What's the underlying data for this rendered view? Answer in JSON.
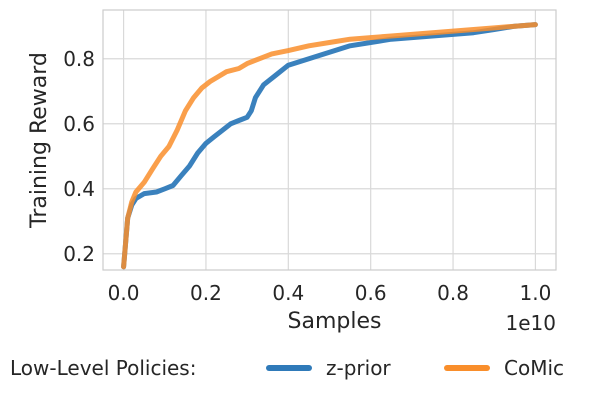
{
  "chart_data": {
    "type": "line",
    "xlabel": "Samples",
    "ylabel": "Training Reward",
    "x_offset_label": "1e10",
    "xlim": [
      -0.05,
      1.05
    ],
    "ylim": [
      0.15,
      0.95
    ],
    "xticks": [
      0.0,
      0.2,
      0.4,
      0.6,
      0.8,
      1.0
    ],
    "xtick_labels": [
      "0.0",
      "0.2",
      "0.4",
      "0.6",
      "0.8",
      "1.0"
    ],
    "yticks": [
      0.2,
      0.4,
      0.6,
      0.8
    ],
    "ytick_labels": [
      "0.2",
      "0.4",
      "0.6",
      "0.8"
    ],
    "grid": true,
    "legend": {
      "title": "Low-Level Policies:",
      "placement": "bottom"
    },
    "series": [
      {
        "name": "z-prior",
        "color": "#2f7ab9",
        "x": [
          0.0,
          0.01,
          0.02,
          0.03,
          0.05,
          0.08,
          0.1,
          0.12,
          0.14,
          0.16,
          0.18,
          0.2,
          0.22,
          0.24,
          0.26,
          0.28,
          0.3,
          0.31,
          0.32,
          0.34,
          0.37,
          0.4,
          0.45,
          0.5,
          0.55,
          0.6,
          0.65,
          0.7,
          0.75,
          0.8,
          0.85,
          0.9,
          0.95,
          1.0
        ],
        "values": [
          0.16,
          0.31,
          0.35,
          0.37,
          0.385,
          0.39,
          0.4,
          0.41,
          0.44,
          0.47,
          0.51,
          0.54,
          0.56,
          0.58,
          0.6,
          0.61,
          0.62,
          0.64,
          0.68,
          0.72,
          0.75,
          0.78,
          0.8,
          0.82,
          0.84,
          0.85,
          0.86,
          0.865,
          0.87,
          0.875,
          0.88,
          0.89,
          0.9,
          0.905
        ]
      },
      {
        "name": "CoMic",
        "color": "#f98e2b",
        "x": [
          0.0,
          0.01,
          0.02,
          0.03,
          0.05,
          0.07,
          0.09,
          0.11,
          0.13,
          0.15,
          0.17,
          0.19,
          0.21,
          0.23,
          0.25,
          0.28,
          0.3,
          0.33,
          0.36,
          0.4,
          0.45,
          0.5,
          0.55,
          0.6,
          0.65,
          0.7,
          0.75,
          0.8,
          0.85,
          0.9,
          0.95,
          1.0
        ],
        "values": [
          0.16,
          0.31,
          0.36,
          0.39,
          0.42,
          0.46,
          0.5,
          0.53,
          0.58,
          0.64,
          0.68,
          0.71,
          0.73,
          0.745,
          0.76,
          0.77,
          0.785,
          0.8,
          0.815,
          0.825,
          0.84,
          0.85,
          0.86,
          0.865,
          0.87,
          0.875,
          0.88,
          0.885,
          0.89,
          0.895,
          0.9,
          0.905
        ]
      }
    ]
  }
}
